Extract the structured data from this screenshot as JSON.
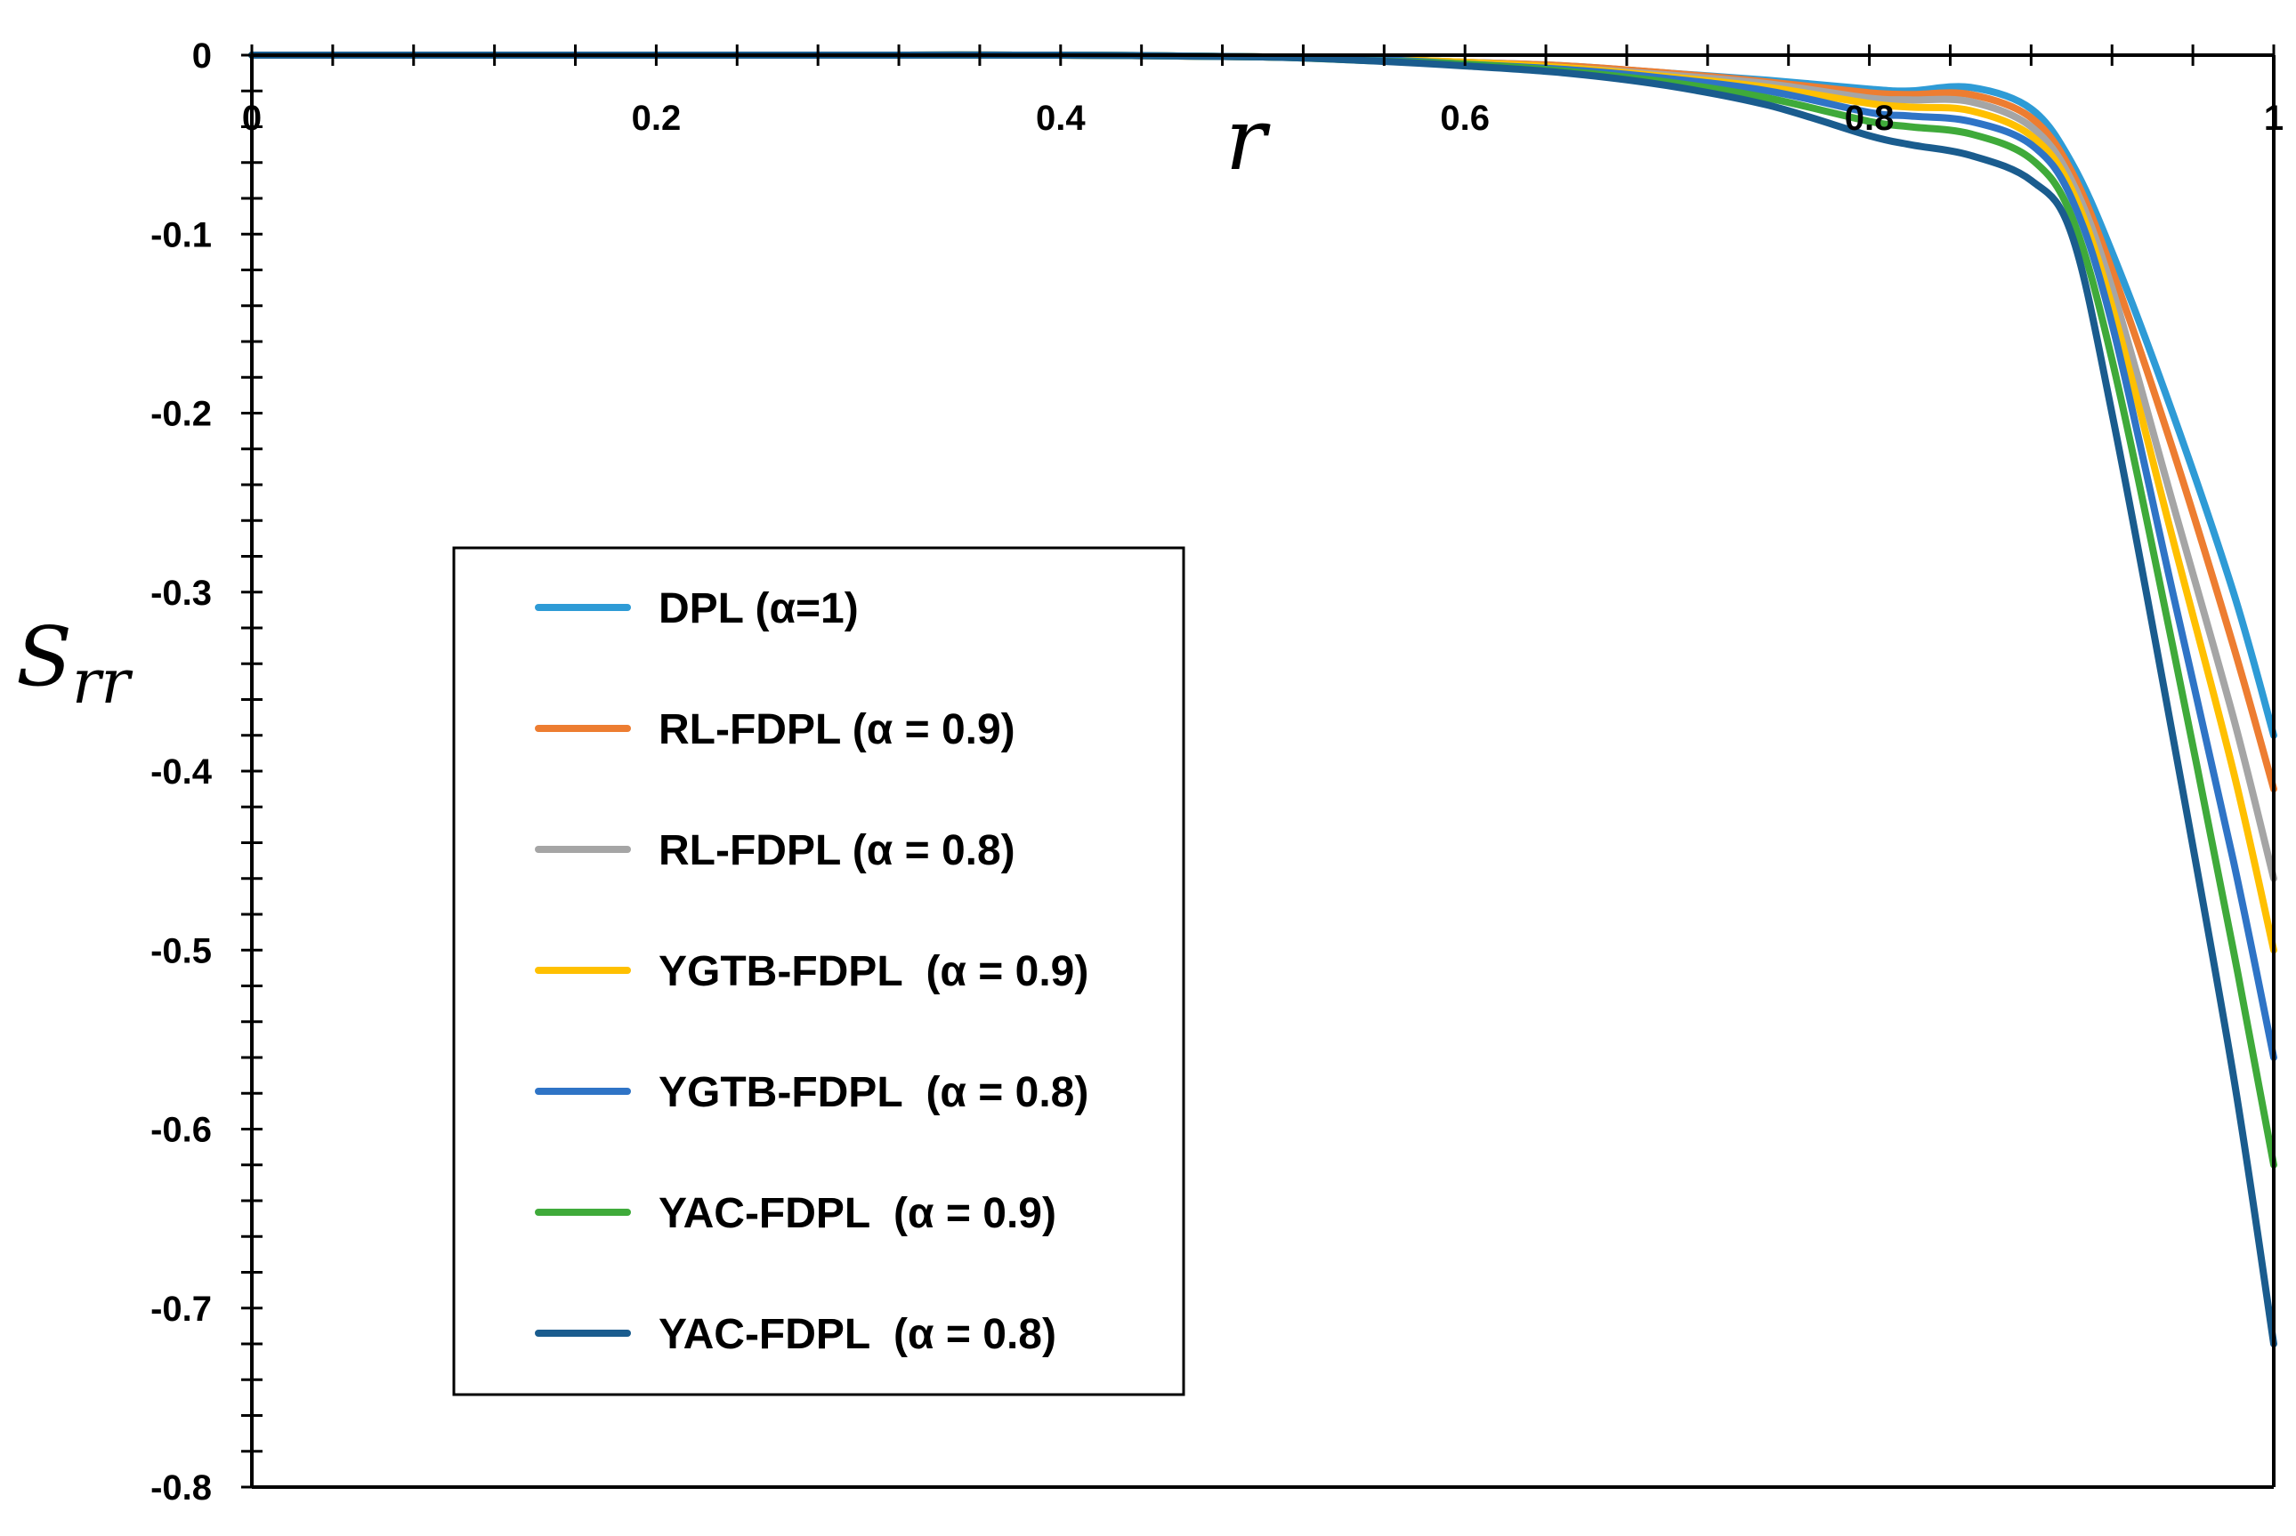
{
  "chart_data": {
    "type": "line",
    "title": "",
    "xlabel": "r",
    "ylabel_main": "S",
    "ylabel_sub": "rr",
    "xlim": [
      0,
      1
    ],
    "ylim": [
      -0.8,
      0
    ],
    "x_ticks": [
      "0",
      "0.2",
      "0.4",
      "0.6",
      "0.8",
      "1"
    ],
    "y_ticks": [
      "0",
      "-0.1",
      "-0.2",
      "-0.3",
      "-0.4",
      "-0.5",
      "-0.6",
      "-0.7",
      "-0.8"
    ],
    "grid": false,
    "legend_position": "center-left",
    "x": [
      0,
      0.1,
      0.2,
      0.3,
      0.4,
      0.5,
      0.55,
      0.6,
      0.65,
      0.7,
      0.75,
      0.8,
      0.82,
      0.85,
      0.88,
      0.9,
      0.92,
      0.95,
      0.98,
      1.0
    ],
    "series": [
      {
        "name": "DPL (α=1)",
        "color": "#2E9BD6",
        "values": [
          0,
          0,
          0,
          0,
          0,
          -0.001,
          -0.002,
          -0.004,
          -0.006,
          -0.01,
          -0.014,
          -0.019,
          -0.02,
          -0.018,
          -0.03,
          -0.06,
          -0.11,
          -0.2,
          -0.3,
          -0.38
        ]
      },
      {
        "name": "RL-FDPL (α = 0.9)",
        "color": "#ED7D31",
        "values": [
          0,
          0,
          0,
          0,
          0,
          -0.001,
          -0.002,
          -0.004,
          -0.006,
          -0.01,
          -0.015,
          -0.021,
          -0.022,
          -0.022,
          -0.035,
          -0.065,
          -0.12,
          -0.22,
          -0.33,
          -0.41
        ]
      },
      {
        "name": "RL-FDPL (α = 0.8)",
        "color": "#A5A5A5",
        "values": [
          0,
          0,
          0,
          0,
          0,
          -0.001,
          -0.002,
          -0.004,
          -0.007,
          -0.011,
          -0.016,
          -0.024,
          -0.025,
          -0.026,
          -0.04,
          -0.07,
          -0.13,
          -0.25,
          -0.37,
          -0.46
        ]
      },
      {
        "name": "YGTB-FDPL  (α = 0.9)",
        "color": "#FFC000",
        "values": [
          0,
          0,
          0,
          0,
          0,
          -0.001,
          -0.002,
          -0.004,
          -0.007,
          -0.012,
          -0.018,
          -0.027,
          -0.029,
          -0.031,
          -0.045,
          -0.075,
          -0.14,
          -0.27,
          -0.4,
          -0.5
        ]
      },
      {
        "name": "YGTB-FDPL  (α = 0.8)",
        "color": "#2F74C6",
        "values": [
          0,
          0,
          0,
          0,
          0,
          -0.001,
          -0.002,
          -0.005,
          -0.008,
          -0.013,
          -0.02,
          -0.032,
          -0.034,
          -0.037,
          -0.05,
          -0.08,
          -0.15,
          -0.3,
          -0.45,
          -0.56
        ]
      },
      {
        "name": "YAC-FDPL  (α = 0.9)",
        "color": "#3FAA3A",
        "values": [
          0,
          0,
          0,
          0,
          0,
          -0.001,
          -0.003,
          -0.005,
          -0.009,
          -0.015,
          -0.024,
          -0.037,
          -0.04,
          -0.044,
          -0.058,
          -0.09,
          -0.17,
          -0.33,
          -0.5,
          -0.62
        ]
      },
      {
        "name": "YAC-FDPL  (α = 0.8)",
        "color": "#1A5C8E",
        "values": [
          0,
          0,
          0,
          0,
          0,
          -0.001,
          -0.003,
          -0.006,
          -0.01,
          -0.017,
          -0.028,
          -0.045,
          -0.05,
          -0.056,
          -0.07,
          -0.1,
          -0.2,
          -0.38,
          -0.57,
          -0.72
        ]
      }
    ]
  }
}
